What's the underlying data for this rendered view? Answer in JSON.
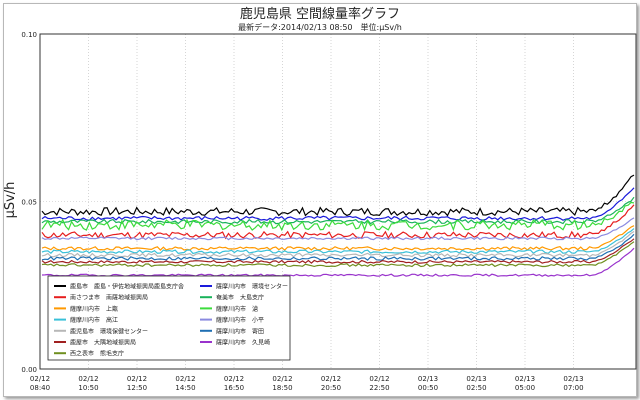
{
  "chart_data": {
    "type": "line",
    "title": "鹿児島県 空間線量率グラフ",
    "subtitle": "最新データ:2014/02/13 08:50　単位:μSv/h",
    "ylabel": "μSv/h",
    "ylim": [
      0,
      0.1
    ],
    "yticks": [
      "0.00",
      "0.05",
      "0.10"
    ],
    "grid": true,
    "legend_position": "bottom-left",
    "x_tick_labels": [
      [
        "02/12",
        "08:40"
      ],
      [
        "02/12",
        "10:50"
      ],
      [
        "02/12",
        "12:50"
      ],
      [
        "02/12",
        "14:50"
      ],
      [
        "02/12",
        "16:50"
      ],
      [
        "02/12",
        "18:50"
      ],
      [
        "02/12",
        "20:50"
      ],
      [
        "02/12",
        "22:50"
      ],
      [
        "02/13",
        "00:50"
      ],
      [
        "02/13",
        "02:50"
      ],
      [
        "02/13",
        "05:00"
      ],
      [
        "02/13",
        "07:00"
      ]
    ],
    "series": [
      {
        "name": "鹿島市　鹿島・伊佐地域振興局鹿島支庁舎",
        "color": "#000000",
        "base": 0.047,
        "noise": 0.0012,
        "end": 0.058
      },
      {
        "name": "薩摩川内市　環境センター",
        "color": "#1a1adb",
        "base": 0.045,
        "noise": 0.0006,
        "end": 0.054
      },
      {
        "name": "奄美市　大島支庁",
        "color": "#19b25a",
        "base": 0.044,
        "noise": 0.0006,
        "end": 0.051
      },
      {
        "name": "薩摩川内市　滄",
        "color": "#3cdc3c",
        "base": 0.043,
        "noise": 0.0015,
        "end": 0.05
      },
      {
        "name": "南さつま市　南薩地域振興局",
        "color": "#e61e1e",
        "base": 0.04,
        "noise": 0.001,
        "end": 0.049
      },
      {
        "name": "薩摩川内市　小平",
        "color": "#8a8ae0",
        "base": 0.039,
        "noise": 0.0004,
        "end": 0.045
      },
      {
        "name": "薩摩川内市　上甑",
        "color": "#ff9900",
        "base": 0.036,
        "noise": 0.0005,
        "end": 0.043
      },
      {
        "name": "薩摩川内市　高江",
        "color": "#39c0d8",
        "base": 0.035,
        "noise": 0.0005,
        "end": 0.042
      },
      {
        "name": "鹿児島市　環境保健センター",
        "color": "#b7b7b7",
        "base": 0.034,
        "noise": 0.0005,
        "end": 0.041
      },
      {
        "name": "薩摩川内市　寄田",
        "color": "#1f6fb3",
        "base": 0.033,
        "noise": 0.0005,
        "end": 0.04
      },
      {
        "name": "鹿屋市　大隅地域振興局",
        "color": "#a02020",
        "base": 0.032,
        "noise": 0.0004,
        "end": 0.039
      },
      {
        "name": "西之表市　熊毛支庁",
        "color": "#6f8f1f",
        "base": 0.031,
        "noise": 0.0004,
        "end": 0.038
      },
      {
        "name": "薩摩川内市　久見崎",
        "color": "#9933cc",
        "base": 0.028,
        "noise": 0.0003,
        "end": 0.036
      }
    ],
    "legend_columns": [
      [
        "鹿島市　鹿島・伊佐地域振興局鹿島支庁舎",
        "南さつま市　南薩地域振興局",
        "薩摩川内市　上甑",
        "薩摩川内市　高江",
        "鹿児島市　環境保健センター",
        "鹿屋市　大隅地域振興局",
        "西之表市　熊毛支庁"
      ],
      [
        "薩摩川内市　環境センター",
        "奄美市　大島支庁",
        "薩摩川内市　滄",
        "薩摩川内市　小平",
        "薩摩川内市　寄田",
        "薩摩川内市　久見崎"
      ]
    ]
  }
}
